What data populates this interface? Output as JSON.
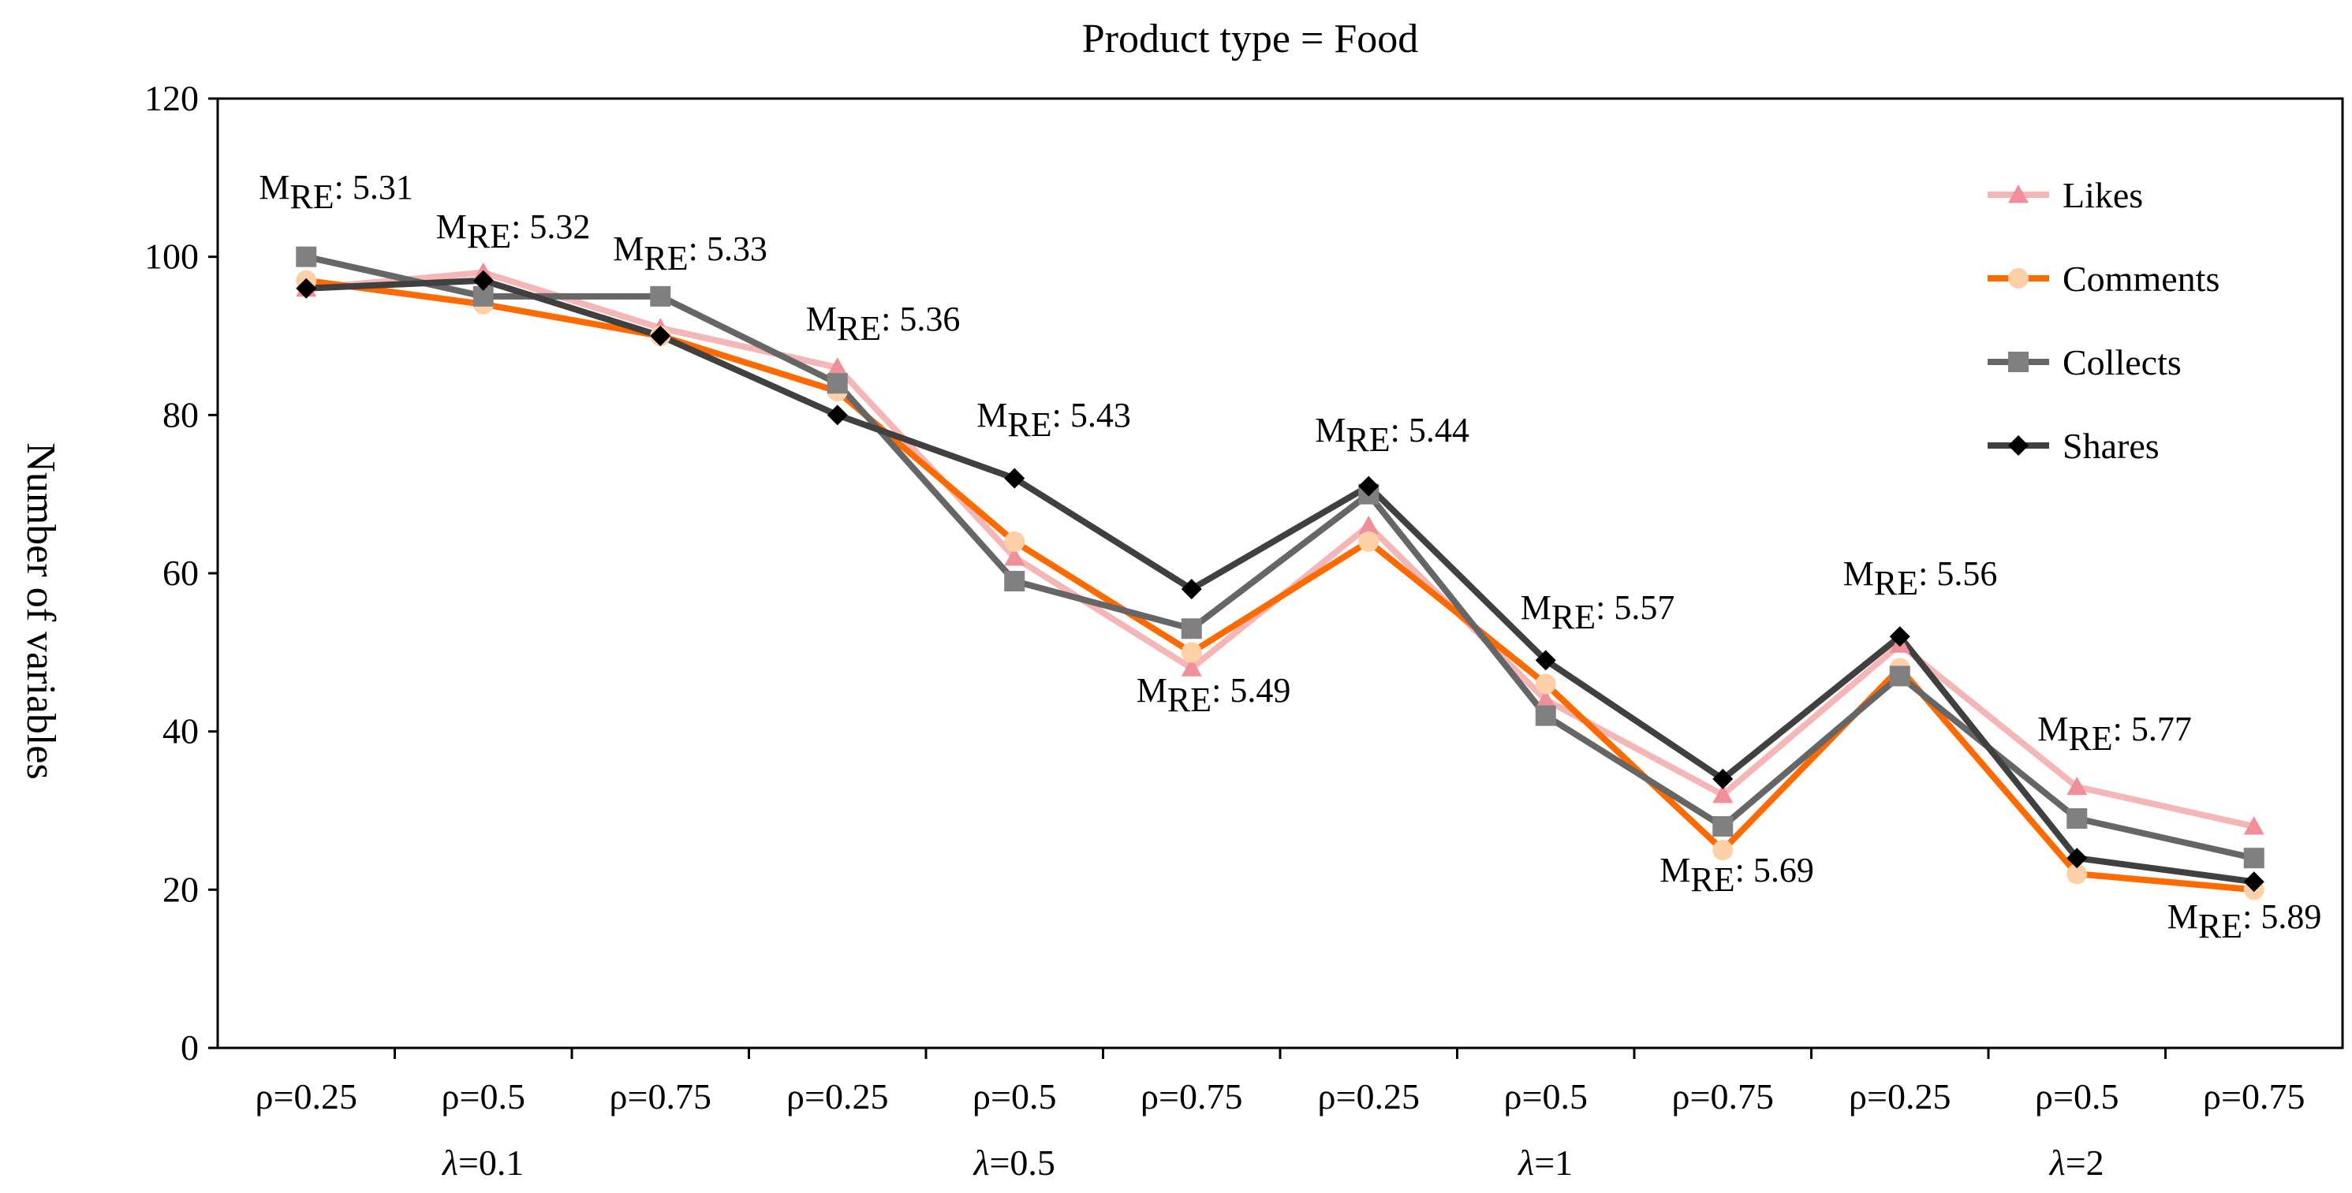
{
  "chart_data": {
    "type": "line",
    "title": "Product type = Food",
    "ylabel": "Number of variables",
    "xlabel": "",
    "ylim": [
      0,
      120
    ],
    "yticks": [
      0,
      20,
      40,
      60,
      80,
      100,
      120
    ],
    "categories": [
      "ρ=0.25",
      "ρ=0.5",
      "ρ=0.75",
      "ρ=0.25",
      "ρ=0.5",
      "ρ=0.75",
      "ρ=0.25",
      "ρ=0.5",
      "ρ=0.75",
      "ρ=0.25",
      "ρ=0.5",
      "ρ=0.75"
    ],
    "groups": [
      {
        "label": "λ=0.1",
        "symbol": "λ",
        "value": "=0.1"
      },
      {
        "label": "λ=0.5",
        "symbol": "λ",
        "value": "=0.5"
      },
      {
        "label": "λ=1",
        "symbol": "λ",
        "value": "=1"
      },
      {
        "label": "λ=2",
        "symbol": "λ",
        "value": "=2"
      }
    ],
    "series": [
      {
        "name": "Likes",
        "color": "#f4b6b6",
        "marker": "triangle",
        "marker_color": "#f08f97",
        "values": [
          96,
          98,
          91,
          86,
          62,
          48,
          66,
          44,
          32,
          51,
          33,
          28
        ]
      },
      {
        "name": "Comments",
        "color": "#ff6a00",
        "marker": "circle",
        "marker_color": "#fdd0a7",
        "values": [
          97,
          94,
          90,
          83,
          64,
          50,
          64,
          46,
          25,
          48,
          22,
          20
        ]
      },
      {
        "name": "Collects",
        "color": "#666666",
        "marker": "square",
        "marker_color": "#808080",
        "values": [
          100,
          95,
          95,
          84,
          59,
          53,
          70,
          42,
          28,
          47,
          29,
          24
        ]
      },
      {
        "name": "Shares",
        "color": "#404040",
        "marker": "diamond",
        "marker_color": "#000000",
        "values": [
          96,
          97,
          90,
          80,
          72,
          58,
          71,
          49,
          34,
          52,
          24,
          21
        ]
      }
    ],
    "annotations": [
      {
        "index": 0,
        "main": "M",
        "sub": "RE",
        "text": ": 5.31"
      },
      {
        "index": 1,
        "main": "M",
        "sub": "RE",
        "text": ": 5.32"
      },
      {
        "index": 2,
        "main": "M",
        "sub": "RE",
        "text": ": 5.33"
      },
      {
        "index": 3,
        "main": "M",
        "sub": "RE",
        "text": ": 5.36"
      },
      {
        "index": 4,
        "main": "M",
        "sub": "RE",
        "text": ":  5.43"
      },
      {
        "index": 5,
        "main": "M",
        "sub": "RE",
        "text": ": 5.49"
      },
      {
        "index": 6,
        "main": "M",
        "sub": "RE",
        "text": ": 5.44"
      },
      {
        "index": 7,
        "main": "M",
        "sub": "RE",
        "text": ": 5.57"
      },
      {
        "index": 8,
        "main": "M",
        "sub": "RE",
        "text": ": 5.69"
      },
      {
        "index": 9,
        "main": "M",
        "sub": "RE",
        "text": ": 5.56"
      },
      {
        "index": 10,
        "main": "M",
        "sub": "RE",
        "text": ": 5.77"
      },
      {
        "index": 11,
        "main": "M",
        "sub": "RE",
        "text": ": 5.89"
      }
    ],
    "legend_position": "top-right",
    "grid": false
  }
}
